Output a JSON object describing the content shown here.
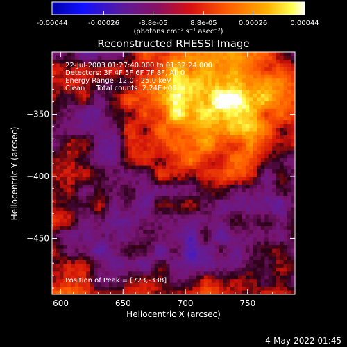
{
  "chart_data": {
    "type": "heatmap",
    "title": "Reconstructed RHESSI Image",
    "xlabel": "Heliocentric X (arcsec)",
    "ylabel": "Heliocentric Y (arcsec)",
    "xlim": [
      593,
      788
    ],
    "ylim": [
      -495,
      -300
    ],
    "x_ticks": [
      600,
      650,
      700,
      750
    ],
    "x_tick_labels": [
      "600",
      "650",
      "700",
      "750"
    ],
    "y_ticks": [
      -350,
      -400,
      -450
    ],
    "y_tick_labels": [
      "−350",
      "−400",
      "−450"
    ],
    "colorbar": {
      "colormap": "IDL rainbow-heat (blue-purple-red-orange-yellow-white)",
      "range": [
        -0.00044,
        0.00044
      ],
      "ticks": [
        -0.00044,
        -0.00026,
        -8.8e-05,
        8.8e-05,
        0.00026,
        0.00044
      ],
      "tick_labels": [
        "-0.00044",
        "-0.00026",
        "-8.8e-05",
        "8.8e-05",
        "0.00026",
        "0.00044"
      ],
      "units": "(photons cm⁻² s⁻¹ asec⁻²)"
    },
    "annotations": [
      "22-Jul-2003 01:27:40.000 to 01:32:24.000",
      "Detectors: 3F 4F 5F 6F 7F 8F, All 0",
      "Energy Range: 12.0 - 25.0 keV",
      "Clean     Total counts: 2.24E+05"
    ],
    "peak_label": "Position of Peak = [723,-338]",
    "peak": [
      723,
      -338
    ]
  },
  "footer": {
    "timestamp": "4-May-2022 01:45"
  },
  "colors": {
    "background": "#000000",
    "foreground": "#ffffff"
  }
}
